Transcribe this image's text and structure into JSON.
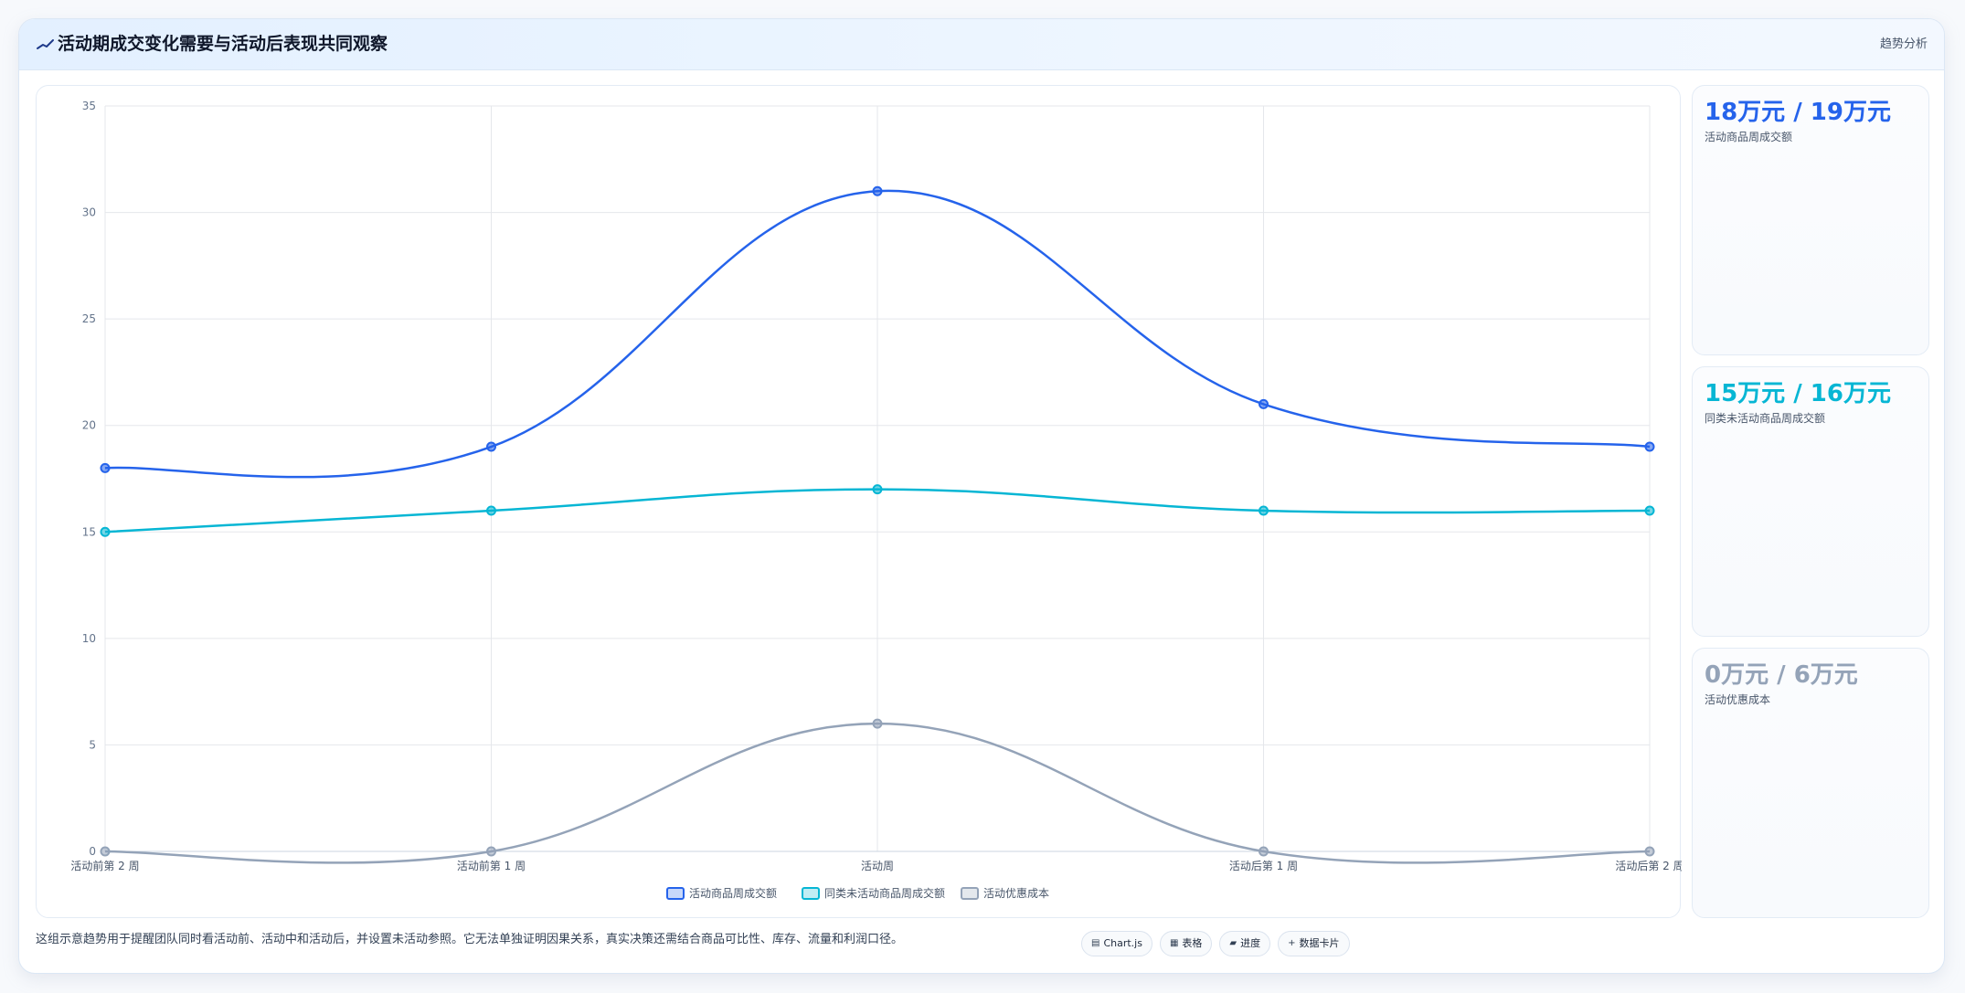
{
  "header": {
    "title": "活动期成交变化需要与活动后表现共同观察",
    "tag": "趋势分析"
  },
  "stats": [
    {
      "value": "18万元 / 19万元",
      "label": "活动商品周成交额",
      "color": "#2563eb"
    },
    {
      "value": "15万元 / 16万元",
      "label": "同类未活动商品周成交额",
      "color": "#06b6d4"
    },
    {
      "value": "0万元 / 6万元",
      "label": "活动优惠成本",
      "color": "#94a3b8"
    }
  ],
  "footer": {
    "note": "这组示意趋势用于提醒团队同时看活动前、活动中和活动后，并设置未活动参照。它无法单独证明因果关系，真实决策还需结合商品可比性、库存、流量和利润口径。",
    "buttons": [
      {
        "icon": "▤",
        "label": "Chart.js"
      },
      {
        "icon": "▦",
        "label": "表格"
      },
      {
        "icon": "▰",
        "label": "进度"
      },
      {
        "icon": "+",
        "label": "数据卡片"
      }
    ]
  },
  "chart_data": {
    "type": "line",
    "categories": [
      "活动前第 2 周",
      "活动前第 1 周",
      "活动周",
      "活动后第 1 周",
      "活动后第 2 周"
    ],
    "ylim": [
      0,
      35
    ],
    "yticks": [
      0,
      5,
      10,
      15,
      20,
      25,
      30,
      35
    ],
    "grid": true,
    "legend_position": "bottom",
    "series": [
      {
        "name": "活动商品周成交额",
        "color": "#2563eb",
        "values": [
          18,
          19,
          31,
          21,
          19
        ]
      },
      {
        "name": "同类未活动商品周成交额",
        "color": "#06b6d4",
        "values": [
          15,
          16,
          17,
          16,
          16
        ]
      },
      {
        "name": "活动优惠成本",
        "color": "#94a3b8",
        "values": [
          0,
          0,
          6,
          0,
          0
        ]
      }
    ]
  }
}
